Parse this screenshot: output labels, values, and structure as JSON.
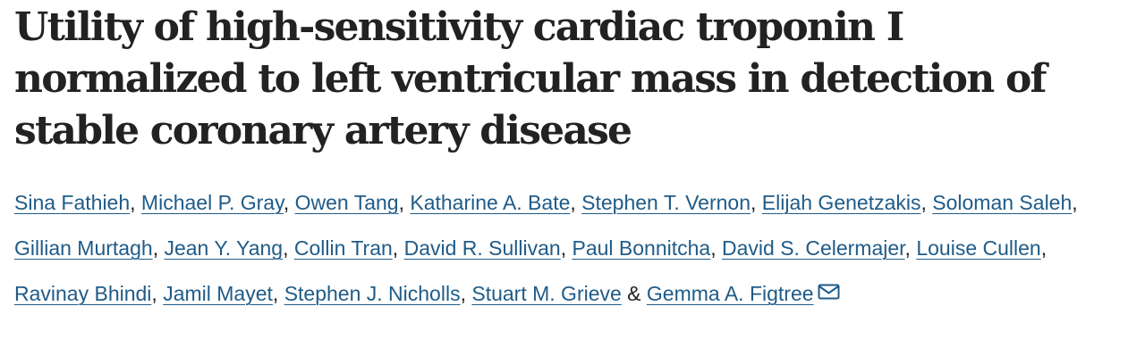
{
  "article": {
    "title": "Utility of high-sensitivity cardiac troponin I normalized to left ventricular mass in detection of stable coronary artery disease"
  },
  "authors": [
    {
      "name": "Sina Fathieh",
      "sep": ", "
    },
    {
      "name": "Michael P. Gray",
      "sep": ", "
    },
    {
      "name": "Owen Tang",
      "sep": ", "
    },
    {
      "name": "Katharine A. Bate",
      "sep": ", "
    },
    {
      "name": "Stephen T. Vernon",
      "sep": ", "
    },
    {
      "name": "Elijah Genetzakis",
      "sep": ", "
    },
    {
      "name": "Soloman Saleh",
      "sep": ", "
    },
    {
      "name": "Gillian Murtagh",
      "sep": ", "
    },
    {
      "name": "Jean Y. Yang",
      "sep": ", "
    },
    {
      "name": "Collin Tran",
      "sep": ", "
    },
    {
      "name": "David R. Sullivan",
      "sep": ", "
    },
    {
      "name": "Paul Bonnitcha",
      "sep": ", "
    },
    {
      "name": "David S. Celermajer",
      "sep": ", "
    },
    {
      "name": "Louise Cullen",
      "sep": ", "
    },
    {
      "name": "Ravinay Bhindi",
      "sep": ", "
    },
    {
      "name": "Jamil Mayet",
      "sep": ", "
    },
    {
      "name": "Stephen J. Nicholls",
      "sep": ", "
    },
    {
      "name": "Stuart M. Grieve",
      "sep": " & "
    },
    {
      "name": "Gemma A. Figtree",
      "sep": ""
    }
  ],
  "icons": {
    "corresponding_author": "mail-icon"
  },
  "colors": {
    "link": "#1f5b88",
    "title": "#222222"
  }
}
